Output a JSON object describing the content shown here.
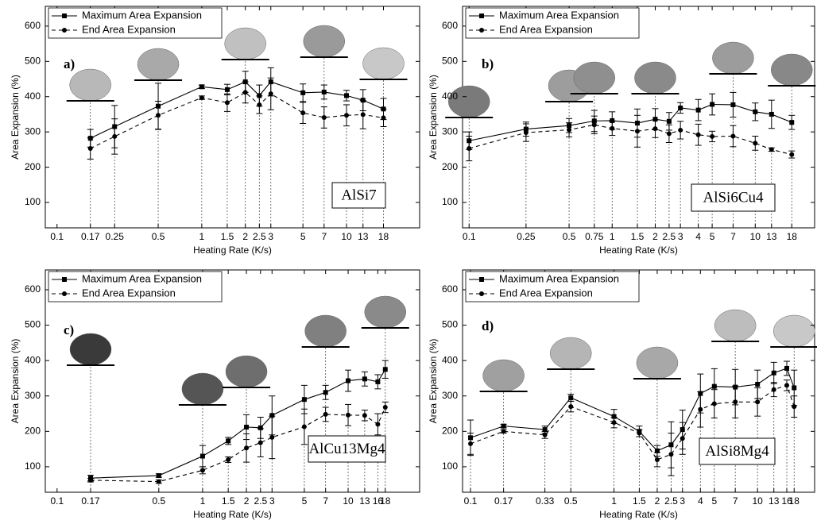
{
  "chart_data": [
    {
      "type": "line",
      "panel_label": "a)",
      "alloy": "AlSi7",
      "x_label": "Heating Rate (K/s)",
      "y_label": "Area Expansion (%)",
      "x_log": true,
      "xlim": [
        0.083,
        32
      ],
      "ylim": [
        28,
        656
      ],
      "xticks": [
        0.1,
        0.17,
        0.25,
        0.5,
        1,
        1.5,
        2,
        2.5,
        3,
        5,
        7,
        10,
        13,
        18
      ],
      "yticks": [
        100,
        200,
        300,
        400,
        500,
        600
      ],
      "legend": "upper left",
      "x": [
        0.17,
        0.25,
        0.5,
        1,
        1.5,
        2,
        2.5,
        3,
        5,
        7,
        10,
        13,
        18
      ],
      "series": [
        {
          "name": "Maximum Area Expansion",
          "color": "#000000",
          "marker": "square",
          "line_style": "solid",
          "values": [
            282,
            315,
            373,
            428,
            420,
            442,
            403,
            442,
            411,
            413,
            403,
            390,
            365
          ],
          "errors": [
            25,
            60,
            65,
            5,
            15,
            30,
            30,
            40,
            25,
            20,
            15,
            30,
            30
          ]
        },
        {
          "name": "End Area Expansion",
          "color": "#000000",
          "marker": "circle",
          "line_style": "dashed",
          "values": [
            253,
            287,
            347,
            397,
            383,
            412,
            377,
            408,
            354,
            341,
            347,
            349,
            340
          ],
          "errors": [
            30,
            50,
            40,
            5,
            25,
            30,
            25,
            45,
            30,
            30,
            30,
            40,
            25
          ]
        }
      ]
    },
    {
      "type": "line",
      "panel_label": "b)",
      "alloy": "AlSi6Cu4",
      "x_label": "Heating Rate (K/s)",
      "y_label": "Area Expansion (%)",
      "x_log": true,
      "xlim": [
        0.09,
        26
      ],
      "ylim": [
        28,
        656
      ],
      "xticks": [
        0.1,
        0.25,
        0.5,
        0.75,
        1,
        1.5,
        2,
        2.5,
        3,
        4,
        5,
        7,
        10,
        13,
        18
      ],
      "yticks": [
        100,
        200,
        300,
        400,
        500,
        600
      ],
      "legend": "upper left",
      "x": [
        0.1,
        0.25,
        0.5,
        0.75,
        1,
        1.5,
        2,
        2.5,
        3,
        4,
        5,
        7,
        10,
        13,
        18
      ],
      "series": [
        {
          "name": "Maximum Area Expansion",
          "color": "#000000",
          "marker": "square",
          "line_style": "solid",
          "values": [
            275,
            308,
            318,
            331,
            332,
            325,
            336,
            330,
            368,
            362,
            378,
            377,
            357,
            350,
            327
          ],
          "errors": [
            25,
            20,
            20,
            30,
            25,
            40,
            30,
            25,
            15,
            30,
            30,
            35,
            25,
            40,
            20
          ]
        },
        {
          "name": "End Area Expansion",
          "color": "#000000",
          "marker": "circle",
          "line_style": "dashed",
          "values": [
            253,
            298,
            306,
            320,
            310,
            302,
            309,
            295,
            305,
            292,
            287,
            288,
            268,
            250,
            236
          ],
          "errors": [
            35,
            25,
            20,
            25,
            20,
            45,
            25,
            25,
            25,
            30,
            15,
            30,
            20,
            5,
            10
          ]
        }
      ]
    },
    {
      "type": "line",
      "panel_label": "c)",
      "alloy": "AlCu13Mg4",
      "x_label": "Heating Rate (K/s)",
      "y_label": "Area Expansion (%)",
      "x_log": true,
      "xlim": [
        0.083,
        31
      ],
      "ylim": [
        28,
        656
      ],
      "xticks": [
        0.1,
        0.17,
        0.5,
        1,
        1.5,
        2,
        2.5,
        3,
        5,
        7,
        10,
        13,
        16,
        18
      ],
      "yticks": [
        100,
        200,
        300,
        400,
        500,
        600
      ],
      "legend": "upper left",
      "x": [
        0.17,
        0.5,
        1,
        1.5,
        2,
        2.5,
        3,
        5,
        7,
        10,
        13,
        16,
        18
      ],
      "series": [
        {
          "name": "Maximum Area Expansion",
          "color": "#000000",
          "marker": "square",
          "line_style": "solid",
          "values": [
            68,
            75,
            130,
            173,
            212,
            210,
            245,
            290,
            310,
            343,
            348,
            340,
            375
          ],
          "errors": [
            8,
            5,
            30,
            10,
            35,
            30,
            55,
            40,
            20,
            30,
            20,
            20,
            25
          ]
        },
        {
          "name": "End Area Expansion",
          "color": "#000000",
          "marker": "circle",
          "line_style": "dashed",
          "values": [
            62,
            58,
            90,
            120,
            153,
            168,
            183,
            213,
            248,
            246,
            245,
            220,
            268
          ],
          "errors": [
            5,
            5,
            10,
            8,
            40,
            40,
            60,
            50,
            20,
            30,
            15,
            30,
            15
          ]
        }
      ]
    },
    {
      "type": "line",
      "panel_label": "d)",
      "alloy": "AlSi8Mg4",
      "x_label": "Heating Rate (K/s)",
      "y_label": "Area Expansion (%)",
      "x_log": true,
      "xlim": [
        0.088,
        25
      ],
      "ylim": [
        28,
        656
      ],
      "xticks": [
        0.1,
        0.17,
        0.33,
        0.5,
        1,
        1.5,
        2,
        2.5,
        3,
        4,
        5,
        7,
        10,
        13,
        16,
        18
      ],
      "yticks": [
        100,
        200,
        300,
        400,
        500,
        600
      ],
      "legend": "upper left",
      "x": [
        0.1,
        0.17,
        0.33,
        0.5,
        1,
        1.5,
        2,
        2.5,
        3,
        4,
        5,
        7,
        10,
        13,
        16,
        18
      ],
      "series": [
        {
          "name": "Maximum Area Expansion",
          "color": "#000000",
          "marker": "square",
          "line_style": "solid",
          "values": [
            182,
            215,
            205,
            295,
            242,
            200,
            145,
            162,
            205,
            307,
            327,
            325,
            333,
            365,
            378,
            323
          ],
          "errors": [
            50,
            5,
            10,
            10,
            20,
            15,
            15,
            65,
            55,
            55,
            50,
            50,
            40,
            30,
            20,
            50
          ]
        },
        {
          "name": "End Area Expansion",
          "color": "#000000",
          "marker": "circle",
          "line_style": "dashed",
          "values": [
            165,
            200,
            190,
            270,
            225,
            195,
            120,
            135,
            180,
            262,
            278,
            283,
            283,
            318,
            330,
            270
          ],
          "errors": [
            30,
            5,
            10,
            15,
            15,
            10,
            20,
            60,
            45,
            50,
            40,
            45,
            40,
            20,
            15,
            30
          ]
        }
      ]
    }
  ]
}
